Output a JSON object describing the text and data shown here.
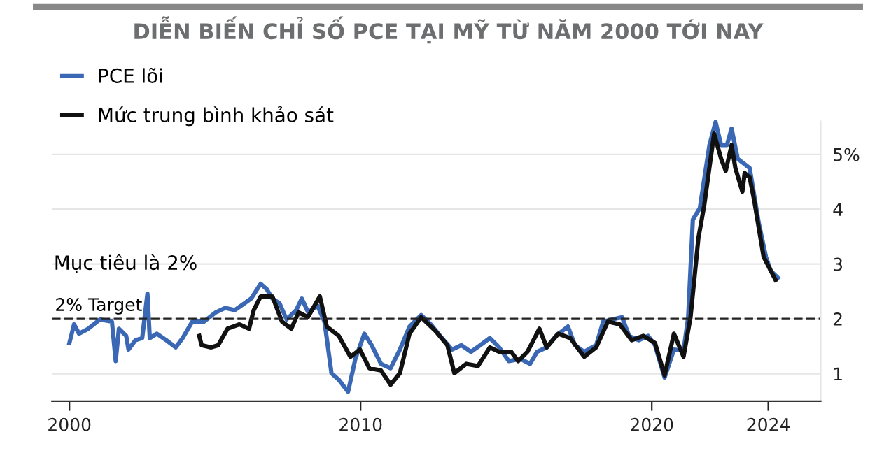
{
  "chart_data": {
    "type": "line",
    "title": "DIỄN BIẾN CHỈ SỐ PCE TẠI MỸ TỪ NĂM 2000 TỚI NAY",
    "series": [
      {
        "name": "PCE lõi",
        "color": "#3a68b4",
        "x": [
          2000.0,
          2000.16,
          2000.33,
          2000.65,
          2001.05,
          2001.46,
          2001.59,
          2001.7,
          2001.95,
          2002.03,
          2002.27,
          2002.5,
          2002.68,
          2002.76,
          2003.0,
          2003.33,
          2003.65,
          2003.89,
          2004.22,
          2004.62,
          2005.03,
          2005.35,
          2005.68,
          2006.0,
          2006.24,
          2006.57,
          2006.78,
          2006.97,
          2007.22,
          2007.46,
          2007.79,
          2007.98,
          2008.2,
          2008.52,
          2008.76,
          2009.0,
          2009.25,
          2009.57,
          2009.82,
          2010.13,
          2010.38,
          2010.7,
          2011.03,
          2011.35,
          2011.68,
          2012.08,
          2012.41,
          2012.73,
          2013.14,
          2013.46,
          2013.79,
          2014.11,
          2014.44,
          2014.76,
          2015.09,
          2015.49,
          2015.82,
          2016.06,
          2016.39,
          2016.71,
          2017.12,
          2017.36,
          2017.68,
          2018.09,
          2018.33,
          2018.65,
          2018.98,
          2019.22,
          2019.55,
          2019.87,
          2020.11,
          2020.44,
          2020.76,
          2021.09,
          2021.25,
          2021.41,
          2021.65,
          2021.98,
          2022.19,
          2022.38,
          2022.58,
          2022.74,
          2022.95,
          2023.36,
          2023.52,
          2023.68,
          2023.92,
          2024.08,
          2024.33
        ],
        "values": [
          1.56,
          1.9,
          1.73,
          1.82,
          1.99,
          1.95,
          1.23,
          1.82,
          1.69,
          1.44,
          1.61,
          1.65,
          2.46,
          1.65,
          1.73,
          1.61,
          1.48,
          1.65,
          1.95,
          1.95,
          2.12,
          2.2,
          2.16,
          2.28,
          2.37,
          2.64,
          2.54,
          2.37,
          2.28,
          1.99,
          2.16,
          2.37,
          2.12,
          2.24,
          1.95,
          1.01,
          0.89,
          0.67,
          1.27,
          1.73,
          1.52,
          1.18,
          1.1,
          1.44,
          1.86,
          2.07,
          1.9,
          1.69,
          1.44,
          1.52,
          1.4,
          1.52,
          1.65,
          1.48,
          1.23,
          1.27,
          1.18,
          1.4,
          1.48,
          1.69,
          1.86,
          1.52,
          1.4,
          1.52,
          1.95,
          1.99,
          2.03,
          1.69,
          1.61,
          1.69,
          1.52,
          0.93,
          1.44,
          1.42,
          2.03,
          3.81,
          4.02,
          5.17,
          5.59,
          5.17,
          5.17,
          5.47,
          4.92,
          4.75,
          4.24,
          3.73,
          3.13,
          2.88,
          2.75
        ]
      },
      {
        "name": "Mức trung bình khảo sát",
        "color": "#111111",
        "x": [
          2004.46,
          2004.54,
          2004.87,
          2005.11,
          2005.43,
          2005.84,
          2006.17,
          2006.33,
          2006.57,
          2006.97,
          2007.3,
          2007.62,
          2007.87,
          2008.19,
          2008.6,
          2008.84,
          2009.25,
          2009.65,
          2009.98,
          2010.3,
          2010.7,
          2011.03,
          2011.35,
          2011.68,
          2012.08,
          2012.57,
          2012.98,
          2013.22,
          2013.63,
          2014.03,
          2014.44,
          2014.76,
          2015.17,
          2015.41,
          2015.73,
          2016.14,
          2016.39,
          2016.79,
          2017.2,
          2017.68,
          2018.09,
          2018.49,
          2018.9,
          2019.31,
          2019.71,
          2020.11,
          2020.44,
          2020.76,
          2021.09,
          2021.33,
          2021.6,
          2021.8,
          2022.14,
          2022.38,
          2022.54,
          2022.74,
          2022.87,
          2023.11,
          2023.19,
          2023.36,
          2023.52,
          2023.84,
          2024.25
        ],
        "values": [
          1.69,
          1.52,
          1.48,
          1.52,
          1.82,
          1.9,
          1.82,
          2.16,
          2.41,
          2.41,
          1.95,
          1.82,
          2.12,
          2.03,
          2.41,
          1.86,
          1.69,
          1.31,
          1.44,
          1.1,
          1.06,
          0.8,
          1.01,
          1.73,
          2.03,
          1.78,
          1.52,
          1.01,
          1.18,
          1.14,
          1.48,
          1.4,
          1.4,
          1.23,
          1.4,
          1.82,
          1.48,
          1.73,
          1.65,
          1.31,
          1.48,
          1.95,
          1.9,
          1.61,
          1.69,
          1.56,
          0.97,
          1.73,
          1.31,
          2.03,
          3.47,
          4.07,
          5.38,
          4.92,
          4.7,
          5.17,
          4.75,
          4.32,
          4.66,
          4.58,
          4.15,
          3.13,
          2.71
        ]
      }
    ],
    "xlim": [
      1999.4,
      2025.8
    ],
    "xticks": [
      2000,
      2010,
      2020,
      2024
    ],
    "ylim": [
      0.5,
      5.6
    ],
    "yticks": [
      1,
      2,
      3,
      4,
      {
        "value": 5,
        "label": "5%"
      }
    ],
    "ref_lines": [
      {
        "axis": "y",
        "value": 2,
        "label": "2% Target",
        "color": "#222222",
        "line_style": "dashed"
      }
    ],
    "annotations": [
      "Mục tiêu là 2%"
    ],
    "grid": "y",
    "legend": "top left",
    "line_style": "solid",
    "marker": "none"
  }
}
